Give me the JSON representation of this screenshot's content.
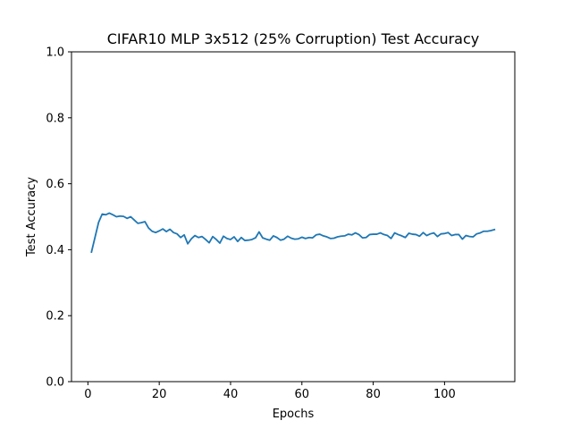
{
  "chart_data": {
    "type": "line",
    "title": "CIFAR10 MLP 3x512 (25% Corruption) Test Accuracy",
    "xlabel": "Epochs",
    "ylabel": "Test Accuracy",
    "xlim": [
      -4.6,
      119.7
    ],
    "ylim": [
      0.0,
      1.0
    ],
    "xticks": [
      0,
      20,
      40,
      60,
      80,
      100
    ],
    "yticks": [
      0.0,
      0.2,
      0.4,
      0.6,
      0.8,
      1.0
    ],
    "xtick_labels": [
      "0",
      "20",
      "40",
      "60",
      "80",
      "100"
    ],
    "ytick_labels": [
      "0.0",
      "0.2",
      "0.4",
      "0.6",
      "0.8",
      "1.0"
    ],
    "grid": false,
    "line_color": "#1f77b4",
    "series": [
      {
        "x": [
          1,
          2,
          3,
          4,
          5,
          6,
          7,
          8,
          9,
          10,
          11,
          12,
          13,
          14,
          15,
          16,
          17,
          18,
          19,
          20,
          21,
          22,
          23,
          24,
          25,
          26,
          27,
          28,
          29,
          30,
          31,
          32,
          33,
          34,
          35,
          36,
          37,
          38,
          39,
          40,
          41,
          42,
          43,
          44,
          45,
          46,
          47,
          48,
          49,
          50,
          51,
          52,
          53,
          54,
          55,
          56,
          57,
          58,
          59,
          60,
          61,
          62,
          63,
          64,
          65,
          66,
          67,
          68,
          69,
          70,
          71,
          72,
          73,
          74,
          75,
          76,
          77,
          78,
          79,
          80,
          81,
          82,
          83,
          84,
          85,
          86,
          87,
          88,
          89,
          90,
          91,
          92,
          93,
          94,
          95,
          96,
          97,
          98,
          99,
          100,
          101,
          102,
          103,
          104,
          105,
          106,
          107,
          108,
          109,
          110,
          111,
          112,
          113,
          114
        ],
        "y": [
          0.393,
          0.438,
          0.483,
          0.508,
          0.506,
          0.511,
          0.506,
          0.5,
          0.502,
          0.501,
          0.495,
          0.5,
          0.49,
          0.48,
          0.482,
          0.485,
          0.466,
          0.456,
          0.452,
          0.457,
          0.463,
          0.455,
          0.462,
          0.452,
          0.448,
          0.437,
          0.445,
          0.418,
          0.433,
          0.443,
          0.437,
          0.44,
          0.431,
          0.421,
          0.44,
          0.431,
          0.42,
          0.441,
          0.434,
          0.431,
          0.439,
          0.425,
          0.437,
          0.428,
          0.429,
          0.431,
          0.436,
          0.454,
          0.436,
          0.432,
          0.429,
          0.442,
          0.437,
          0.429,
          0.432,
          0.441,
          0.435,
          0.432,
          0.433,
          0.438,
          0.434,
          0.437,
          0.436,
          0.445,
          0.447,
          0.442,
          0.439,
          0.434,
          0.435,
          0.439,
          0.441,
          0.442,
          0.447,
          0.445,
          0.451,
          0.446,
          0.436,
          0.437,
          0.446,
          0.447,
          0.447,
          0.451,
          0.446,
          0.443,
          0.434,
          0.451,
          0.446,
          0.442,
          0.437,
          0.45,
          0.447,
          0.446,
          0.441,
          0.452,
          0.443,
          0.448,
          0.451,
          0.44,
          0.448,
          0.449,
          0.452,
          0.443,
          0.446,
          0.446,
          0.432,
          0.443,
          0.44,
          0.439,
          0.448,
          0.451,
          0.456,
          0.456,
          0.458,
          0.461
        ]
      }
    ]
  }
}
